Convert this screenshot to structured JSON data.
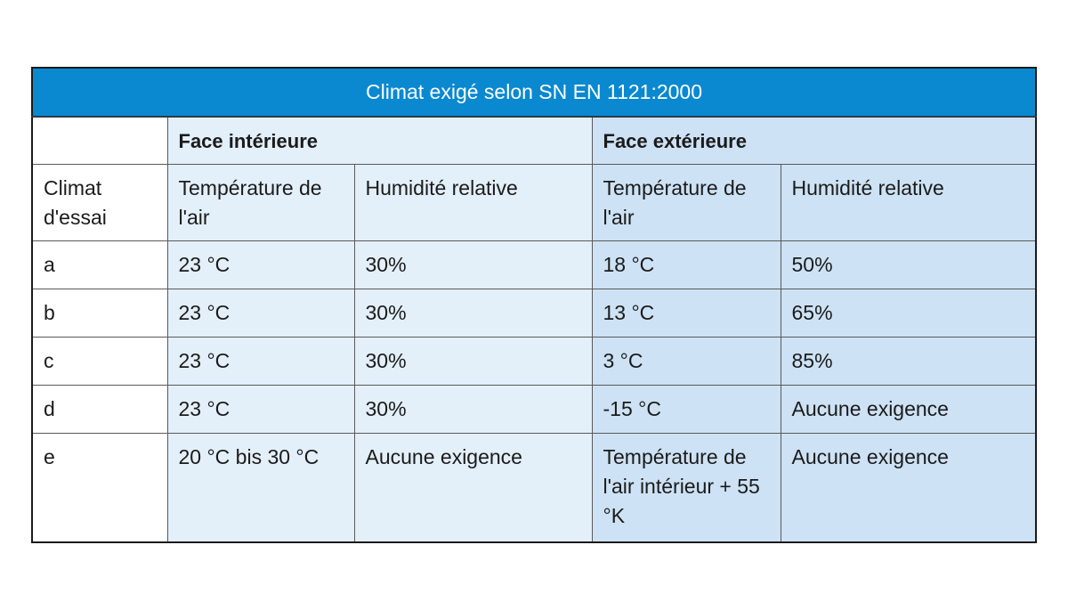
{
  "table": {
    "title": "Climat exigé selon SN EN 1121:2000",
    "groups": {
      "empty": "",
      "interior": "Face intérieure",
      "exterior": "Face extérieure"
    },
    "subheaders": {
      "climate": "Climat d'essai",
      "interior_temp": "Température de l'air",
      "interior_humidity": "Humidité relative",
      "exterior_temp": "Température de l'air",
      "exterior_humidity": "Humidité relative"
    },
    "rows": [
      {
        "climate": "a",
        "interior_temp": "23 °C",
        "interior_humidity": "30%",
        "exterior_temp": "18 °C",
        "exterior_humidity": "50%"
      },
      {
        "climate": "b",
        "interior_temp": "23 °C",
        "interior_humidity": "30%",
        "exterior_temp": "13 °C",
        "exterior_humidity": "65%"
      },
      {
        "climate": "c",
        "interior_temp": "23 °C",
        "interior_humidity": "30%",
        "exterior_temp": "3 °C",
        "exterior_humidity": "85%"
      },
      {
        "climate": "d",
        "interior_temp": "23 °C",
        "interior_humidity": "30%",
        "exterior_temp": "-15 °C",
        "exterior_humidity": "Aucune exigence"
      },
      {
        "climate": "e",
        "interior_temp": "20 °C bis 30 °C",
        "interior_humidity": "Aucune exigence",
        "exterior_temp": "Température de l'air intérieur + 55 °K",
        "exterior_humidity": "Aucune exigence"
      }
    ]
  },
  "colors": {
    "title_bg": "#0a89d1",
    "interior_bg": "#e3eff9",
    "exterior_bg": "#cde2f4"
  }
}
